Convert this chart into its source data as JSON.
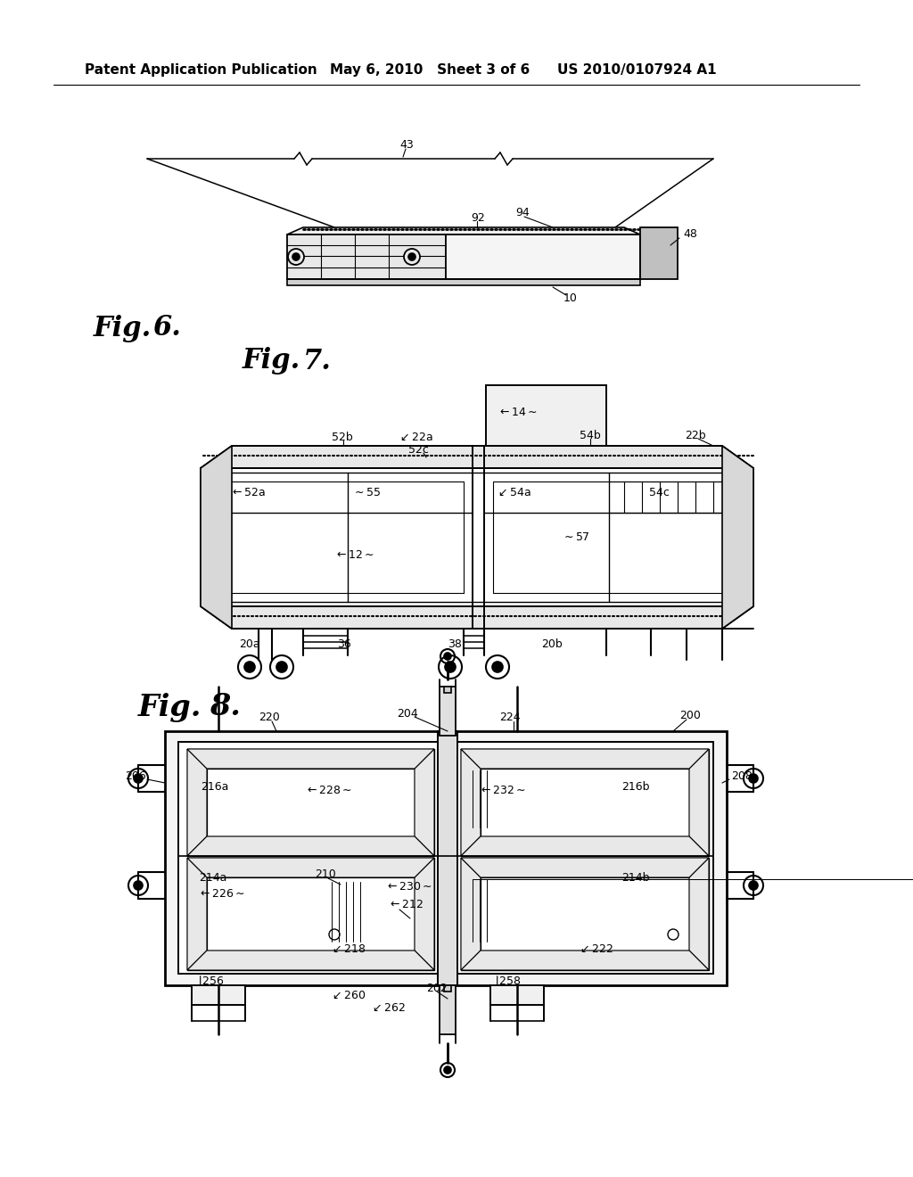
{
  "bg_color": "#ffffff",
  "header_left": "Patent Application Publication",
  "header_mid": "May 6, 2010   Sheet 3 of 6",
  "header_right": "US 2010/0107924 A1"
}
